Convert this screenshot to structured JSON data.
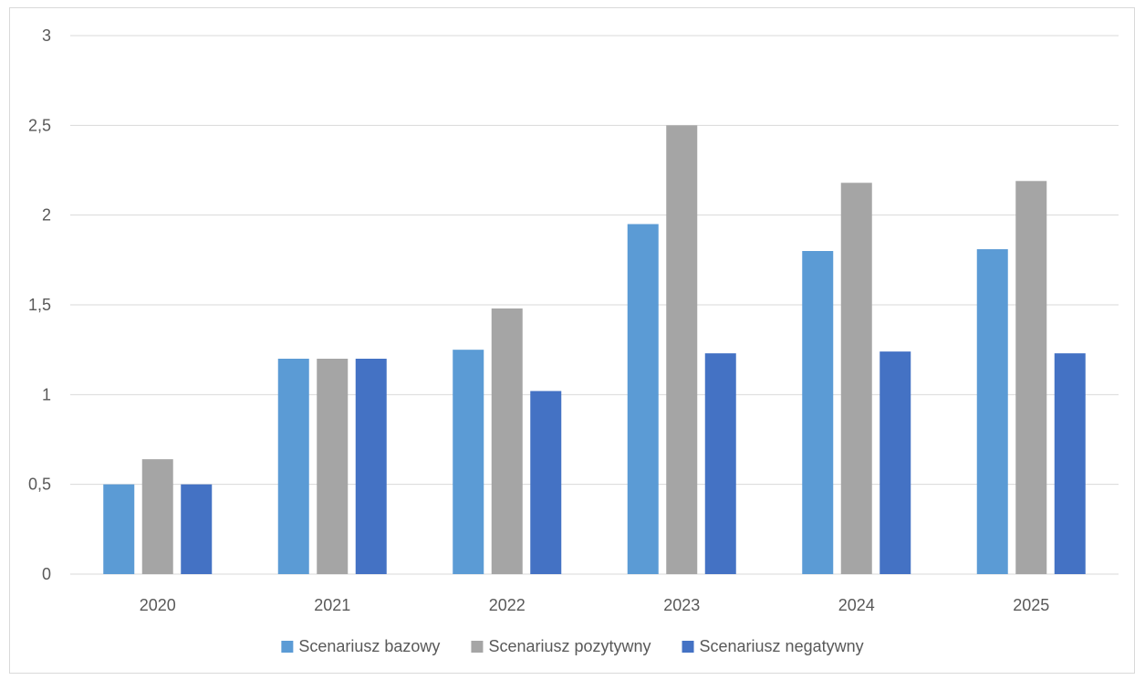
{
  "chart_data": {
    "type": "bar",
    "categories": [
      "2020",
      "2021",
      "2022",
      "2023",
      "2024",
      "2025"
    ],
    "series": [
      {
        "name": "Scenariusz bazowy",
        "color": "#5b9bd5",
        "values": [
          0.5,
          1.2,
          1.25,
          1.95,
          1.8,
          1.81
        ]
      },
      {
        "name": "Scenariusz pozytywny",
        "color": "#a5a5a5",
        "values": [
          0.64,
          1.2,
          1.48,
          2.5,
          2.18,
          2.19
        ]
      },
      {
        "name": "Scenariusz negatywny",
        "color": "#4472c4",
        "values": [
          0.5,
          1.2,
          1.02,
          1.23,
          1.24,
          1.23
        ]
      }
    ],
    "yticks": [
      "0",
      "0,5",
      "1",
      "1,5",
      "2",
      "2,5",
      "3"
    ],
    "ylim": [
      0,
      3
    ],
    "grid": true,
    "legend_position": "bottom",
    "title": "",
    "xlabel": "",
    "ylabel": ""
  }
}
